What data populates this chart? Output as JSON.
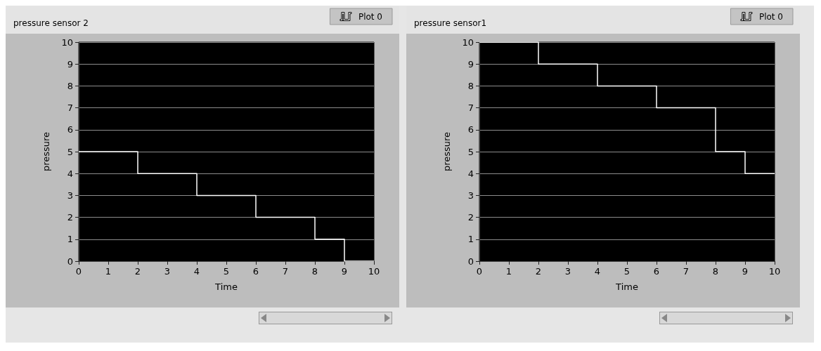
{
  "chart_data": [
    {
      "type": "step",
      "title": "pressure sensor 2",
      "xlabel": "Time",
      "ylabel": "pressure",
      "x": [
        0,
        2,
        4,
        6,
        8,
        9,
        10
      ],
      "series": [
        {
          "name": "Plot 0",
          "color": "#ffffff",
          "values": [
            5,
            4,
            3,
            2,
            1,
            0,
            0
          ]
        }
      ],
      "xlim": [
        0,
        10
      ],
      "xticks": [
        0,
        1,
        2,
        3,
        4,
        5,
        6,
        7,
        8,
        9,
        10
      ],
      "ylim": [
        0,
        10
      ],
      "yticks": [
        0,
        1,
        2,
        3,
        4,
        5,
        6,
        7,
        8,
        9,
        10
      ],
      "grid": "y",
      "legend": "top right",
      "marker": "none",
      "line_style": "solid"
    },
    {
      "type": "step",
      "title": "pressure sensor1",
      "xlabel": "Time",
      "ylabel": "pressure",
      "x": [
        0,
        2,
        4,
        6,
        8,
        9,
        10
      ],
      "series": [
        {
          "name": "Plot 0",
          "color": "#ffffff",
          "values": [
            10,
            9,
            8,
            7,
            5,
            4,
            4
          ]
        }
      ],
      "xlim": [
        0,
        10
      ],
      "xticks": [
        0,
        1,
        2,
        3,
        4,
        5,
        6,
        7,
        8,
        9,
        10
      ],
      "ylim": [
        0,
        10
      ],
      "yticks": [
        0,
        1,
        2,
        3,
        4,
        5,
        6,
        7,
        8,
        9,
        10
      ],
      "grid": "y",
      "legend": "top right",
      "marker": "none",
      "line_style": "solid"
    }
  ]
}
